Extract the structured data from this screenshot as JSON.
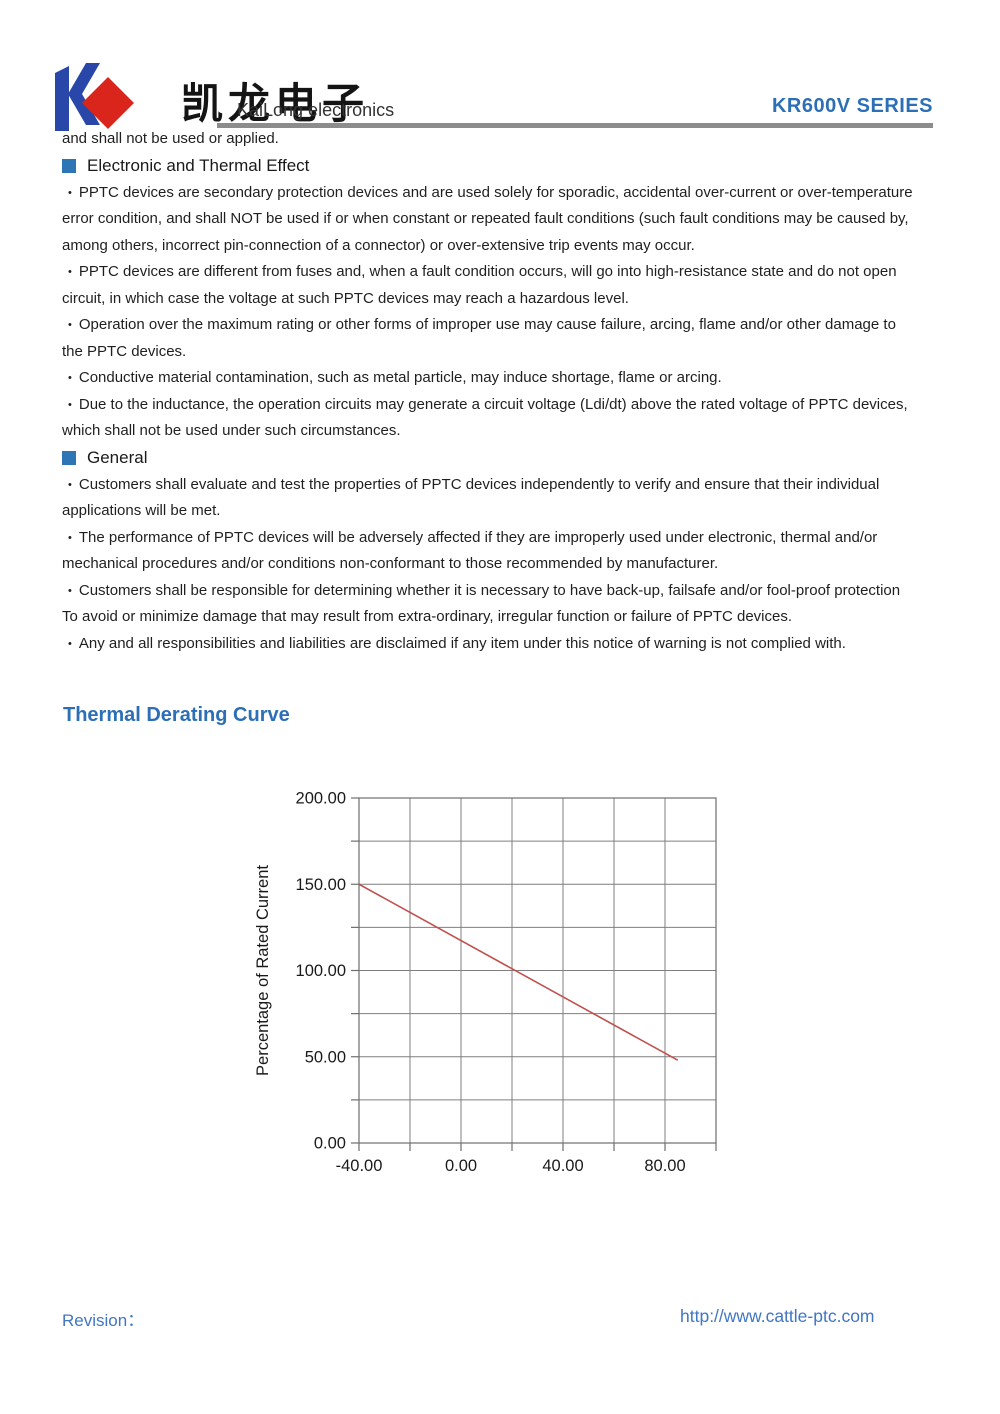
{
  "header": {
    "brand_cn": "凯龙电子",
    "brand_en": "KaiLong electronics",
    "series": "KR600V SERIES",
    "accent_color": "#2d6fb7",
    "rule_color": "#8c8c8c",
    "logo": {
      "blue": "#2847a8",
      "red": "#d9251c"
    }
  },
  "content": {
    "bullet_char": "•",
    "section_square_color": "#2e75b6",
    "blocks": [
      {
        "type": "plain",
        "lines": [
          "and shall not be used or applied."
        ]
      },
      {
        "type": "header",
        "text": "Electronic and Thermal Effect"
      },
      {
        "type": "bullet",
        "lines": [
          "PPTC devices are secondary protection devices and are used solely for sporadic, accidental over-current or over-temperature",
          "error condition, and shall NOT be used if or when constant or repeated fault conditions (such fault conditions may be caused by,",
          "among others, incorrect pin-connection of a connector) or over-extensive trip events may occur."
        ]
      },
      {
        "type": "bullet",
        "lines": [
          "PPTC devices are different from fuses and, when a fault condition occurs, will go into high-resistance state and do not open",
          "circuit, in which case the voltage at such PPTC devices may reach a hazardous level."
        ]
      },
      {
        "type": "bullet",
        "lines": [
          "Operation over the maximum rating or other forms of improper use may cause failure, arcing, flame and/or other damage to",
          "the PPTC devices."
        ]
      },
      {
        "type": "bullet",
        "lines": [
          "Conductive material contamination, such as metal particle, may induce shortage, flame or arcing."
        ]
      },
      {
        "type": "bullet",
        "lines": [
          "Due to the inductance, the operation circuits may generate a circuit voltage (Ldi/dt) above the rated voltage of PPTC devices,",
          "which shall not be used under such circumstances."
        ]
      },
      {
        "type": "header",
        "text": "General"
      },
      {
        "type": "bullet",
        "lines": [
          "Customers shall evaluate and test the properties of PPTC devices independently to verify and ensure that their individual",
          "applications will be met."
        ]
      },
      {
        "type": "bullet",
        "lines": [
          "The performance of PPTC devices will be adversely affected if they are improperly used under electronic, thermal and/or",
          "mechanical procedures and/or conditions non-conformant to those recommended by manufacturer."
        ]
      },
      {
        "type": "bullet",
        "lines": [
          "Customers shall be responsible for determining whether it is necessary to have back-up, failsafe and/or fool-proof protection",
          "To avoid or minimize damage that may result from extra-ordinary, irregular function or failure of PPTC devices."
        ]
      },
      {
        "type": "bullet",
        "lines": [
          "Any and all responsibilities and liabilities are disclaimed if any item under this notice of warning is not complied with."
        ]
      }
    ]
  },
  "derating": {
    "title": "Thermal Derating Curve"
  },
  "chart_data": {
    "type": "line",
    "title": "Thermal Derating Curve",
    "xlabel": "",
    "ylabel": "Percentage of Rated Current",
    "xlim": [
      -40,
      100
    ],
    "ylim": [
      0,
      200
    ],
    "x_grid_step": 20,
    "y_grid_step": 25,
    "grid": true,
    "grid_color": "#7f7f7f",
    "border_color": "#6e6e6e",
    "tick_label_color": "#1a1a1a",
    "x_ticks": [
      {
        "v": -40,
        "label": "-40.00"
      },
      {
        "v": 0,
        "label": "0.00"
      },
      {
        "v": 40,
        "label": "40.00"
      },
      {
        "v": 80,
        "label": "80.00"
      }
    ],
    "y_ticks": [
      {
        "v": 0,
        "label": "0.00"
      },
      {
        "v": 50,
        "label": "50.00"
      },
      {
        "v": 100,
        "label": "100.00"
      },
      {
        "v": 150,
        "label": "150.00"
      },
      {
        "v": 200,
        "label": "200.00"
      }
    ],
    "series": [
      {
        "name": "derating-line",
        "color": "#c0504d",
        "points": [
          {
            "x": -40,
            "y": 150
          },
          {
            "x": 85,
            "y": 48
          }
        ]
      }
    ]
  },
  "footer": {
    "revision_label": "Revision：",
    "url": "http://www.cattle-ptc.com",
    "color": "#4076c4"
  }
}
